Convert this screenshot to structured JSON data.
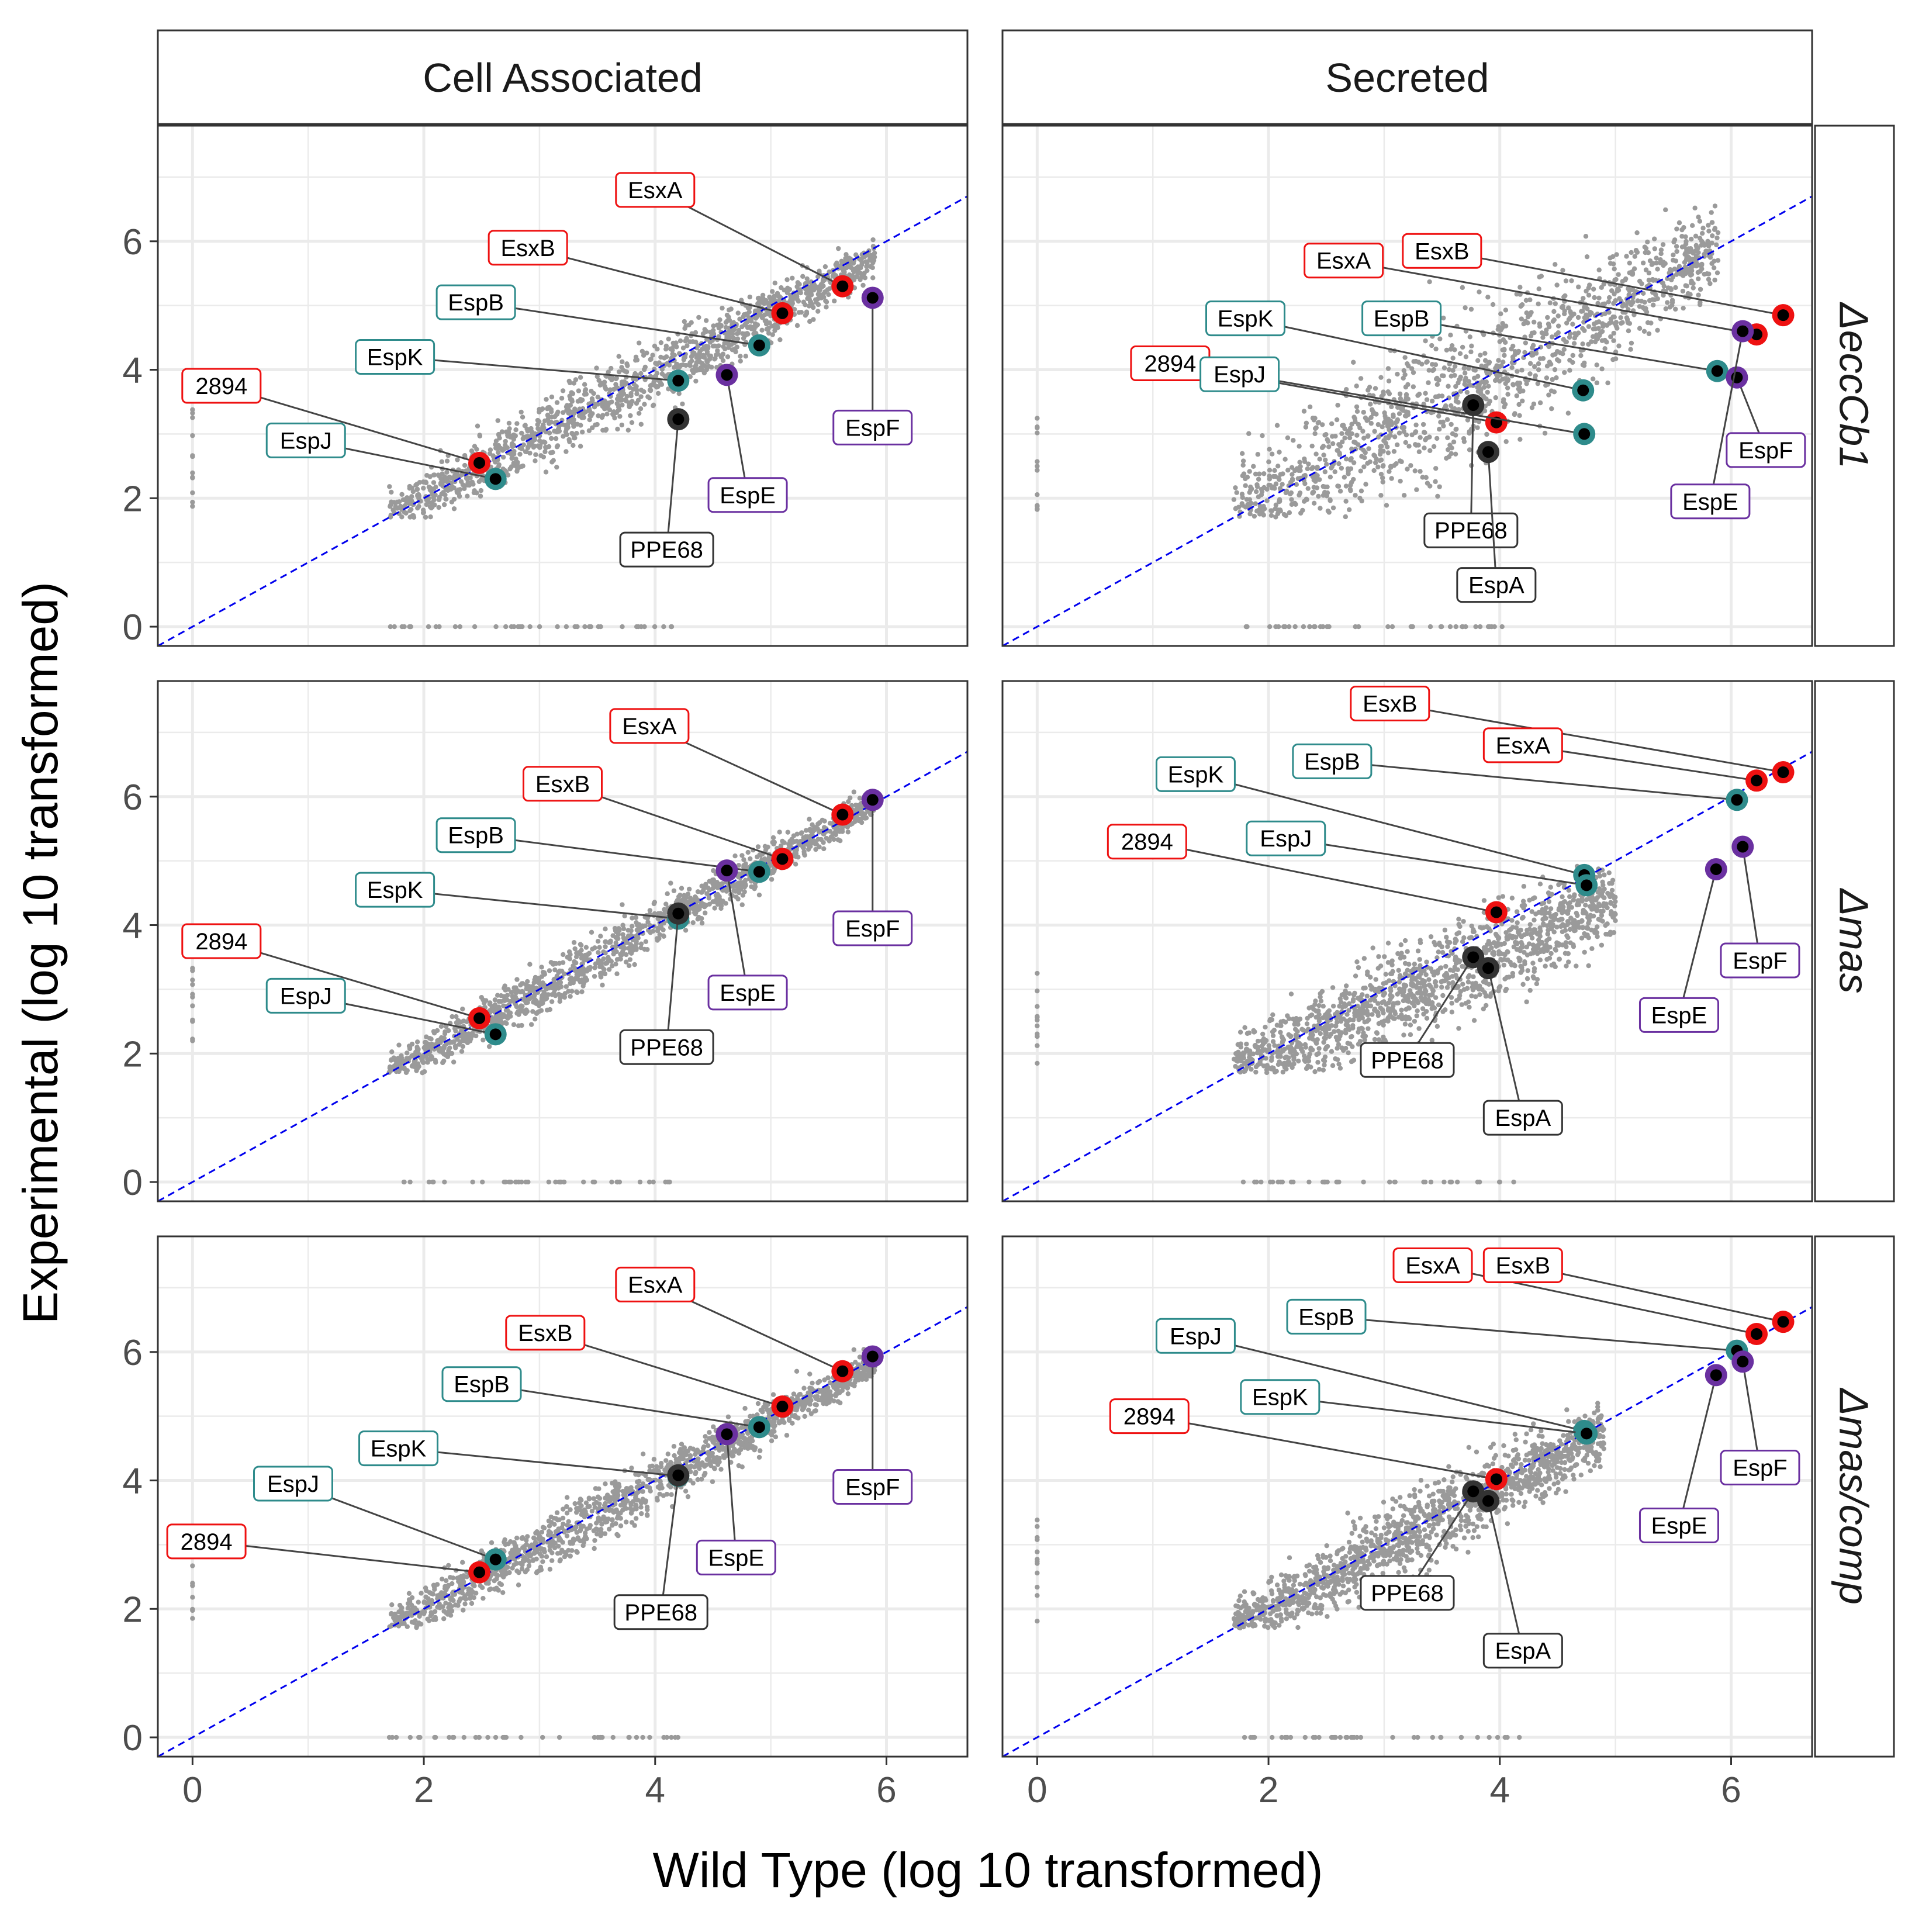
{
  "figure": {
    "ylabel": "Experimental (log 10 transformed)",
    "xlabel": "Wild Type (log 10 transformed)"
  },
  "colors": {
    "background_points": "#9a9a9a",
    "identity_line": "#0000ee",
    "group_esx": "#ee1111",
    "group_esp_teal": "#2e8b8b",
    "group_espEF": "#6a30a0",
    "group_ppe": "#333333"
  },
  "chart_data": {
    "type": "scatter",
    "columns": [
      "Cell Associated",
      "Secreted"
    ],
    "rows": [
      "ΔeccCb1",
      "Δmas",
      "Δmas/comp"
    ],
    "x_ticks": [
      0,
      2,
      4,
      6
    ],
    "y_ticks": [
      0,
      2,
      4,
      6
    ],
    "xlim": [
      -0.3,
      6.7
    ],
    "ylim": [
      -0.3,
      7.8
    ],
    "reference_line": "y = x",
    "grid": true,
    "panels": [
      {
        "row": "ΔeccCb1",
        "column": "Cell Associated",
        "cloud": {
          "x_range": [
            1.7,
            5.9
          ],
          "center_slope": 0.96,
          "spread": 0.25
        },
        "points": [
          {
            "label": "EsxA",
            "x": 5.62,
            "y": 5.3,
            "group": "esx",
            "lx": 4.0,
            "ly": 6.8
          },
          {
            "label": "EsxB",
            "x": 5.1,
            "y": 4.88,
            "group": "esx",
            "lx": 2.9,
            "ly": 5.9
          },
          {
            "label": "EspB",
            "x": 4.9,
            "y": 4.38,
            "group": "teal",
            "lx": 2.45,
            "ly": 5.05
          },
          {
            "label": "EspK",
            "x": 4.2,
            "y": 3.83,
            "group": "teal",
            "lx": 1.75,
            "ly": 4.2
          },
          {
            "label": "2894",
            "x": 2.48,
            "y": 2.55,
            "group": "esx",
            "lx": 0.25,
            "ly": 3.75
          },
          {
            "label": "EspJ",
            "x": 2.62,
            "y": 2.3,
            "group": "teal",
            "lx": 0.98,
            "ly": 2.9
          },
          {
            "label": "EspF",
            "x": 5.88,
            "y": 5.12,
            "group": "purple",
            "lx": 5.88,
            "ly": 3.1
          },
          {
            "label": "EspE",
            "x": 4.62,
            "y": 3.92,
            "group": "purple",
            "lx": 4.8,
            "ly": 2.05
          },
          {
            "label": "PPE68",
            "x": 4.2,
            "y": 3.23,
            "group": "ppe",
            "lx": 4.1,
            "ly": 1.2
          }
        ]
      },
      {
        "row": "ΔeccCb1",
        "column": "Secreted",
        "cloud": {
          "x_range": [
            1.7,
            5.9
          ],
          "center_slope": 1.0,
          "spread": 0.55
        },
        "points": [
          {
            "label": "EsxA",
            "x": 6.22,
            "y": 4.55,
            "group": "esx",
            "lx": 2.65,
            "ly": 5.7
          },
          {
            "label": "EsxB",
            "x": 6.45,
            "y": 4.85,
            "group": "esx",
            "lx": 3.5,
            "ly": 5.85
          },
          {
            "label": "EspK",
            "x": 4.72,
            "y": 3.68,
            "group": "teal",
            "lx": 1.8,
            "ly": 4.8
          },
          {
            "label": "EspB",
            "x": 5.88,
            "y": 3.98,
            "group": "teal",
            "lx": 3.15,
            "ly": 4.8
          },
          {
            "label": "2894",
            "x": 3.97,
            "y": 3.18,
            "group": "esx",
            "lx": 1.15,
            "ly": 4.1
          },
          {
            "label": "EspJ",
            "x": 4.73,
            "y": 3.0,
            "group": "teal",
            "lx": 1.75,
            "ly": 3.93
          },
          {
            "label": "EspF",
            "x": 6.05,
            "y": 3.88,
            "group": "purple",
            "lx": 6.3,
            "ly": 2.75
          },
          {
            "label": "EspE",
            "x": 6.1,
            "y": 4.6,
            "group": "purple",
            "lx": 5.82,
            "ly": 1.95
          },
          {
            "label": "PPE68",
            "x": 3.77,
            "y": 3.45,
            "group": "ppe",
            "lx": 3.75,
            "ly": 1.5
          },
          {
            "label": "EspA",
            "x": 3.9,
            "y": 2.72,
            "group": "ppe",
            "lx": 3.97,
            "ly": 0.65
          }
        ]
      },
      {
        "row": "Δmas",
        "column": "Cell Associated",
        "cloud": {
          "x_range": [
            1.7,
            5.9
          ],
          "center_slope": 1.0,
          "spread": 0.18
        },
        "points": [
          {
            "label": "EsxA",
            "x": 5.62,
            "y": 5.72,
            "group": "esx",
            "lx": 3.95,
            "ly": 7.1
          },
          {
            "label": "EsxB",
            "x": 5.1,
            "y": 5.03,
            "group": "esx",
            "lx": 3.2,
            "ly": 6.2
          },
          {
            "label": "EspB",
            "x": 4.9,
            "y": 4.83,
            "group": "teal",
            "lx": 2.45,
            "ly": 5.4
          },
          {
            "label": "EspK",
            "x": 4.2,
            "y": 4.1,
            "group": "teal",
            "lx": 1.75,
            "ly": 4.55
          },
          {
            "label": "2894",
            "x": 2.48,
            "y": 2.55,
            "group": "esx",
            "lx": 0.25,
            "ly": 3.75
          },
          {
            "label": "EspJ",
            "x": 2.62,
            "y": 2.3,
            "group": "teal",
            "lx": 0.98,
            "ly": 2.9
          },
          {
            "label": "EspF",
            "x": 5.88,
            "y": 5.95,
            "group": "purple",
            "lx": 5.88,
            "ly": 3.95
          },
          {
            "label": "EspE",
            "x": 4.62,
            "y": 4.85,
            "group": "purple",
            "lx": 4.8,
            "ly": 2.95
          },
          {
            "label": "PPE68",
            "x": 4.2,
            "y": 4.18,
            "group": "ppe",
            "lx": 4.1,
            "ly": 2.1
          }
        ]
      },
      {
        "row": "Δmas",
        "column": "Secreted",
        "cloud": {
          "x_range": [
            1.7,
            5.0
          ],
          "center_slope": 0.8,
          "spread": 0.35
        },
        "points": [
          {
            "label": "EsxB",
            "x": 6.45,
            "y": 6.38,
            "group": "esx",
            "lx": 3.05,
            "ly": 7.45
          },
          {
            "label": "EsxA",
            "x": 6.22,
            "y": 6.25,
            "group": "esx",
            "lx": 4.2,
            "ly": 6.8
          },
          {
            "label": "EspB",
            "x": 6.05,
            "y": 5.95,
            "group": "teal",
            "lx": 2.55,
            "ly": 6.55
          },
          {
            "label": "EspK",
            "x": 4.73,
            "y": 4.78,
            "group": "teal",
            "lx": 1.37,
            "ly": 6.35
          },
          {
            "label": "EspJ",
            "x": 4.75,
            "y": 4.62,
            "group": "teal",
            "lx": 2.15,
            "ly": 5.35
          },
          {
            "label": "2894",
            "x": 3.97,
            "y": 4.2,
            "group": "esx",
            "lx": 0.95,
            "ly": 5.3
          },
          {
            "label": "EspE",
            "x": 5.87,
            "y": 4.87,
            "group": "purple",
            "lx": 5.55,
            "ly": 2.6
          },
          {
            "label": "EspF",
            "x": 6.1,
            "y": 5.22,
            "group": "purple",
            "lx": 6.25,
            "ly": 3.45
          },
          {
            "label": "PPE68",
            "x": 3.77,
            "y": 3.5,
            "group": "ppe",
            "lx": 3.2,
            "ly": 1.9
          },
          {
            "label": "EspA",
            "x": 3.9,
            "y": 3.33,
            "group": "ppe",
            "lx": 4.2,
            "ly": 1.0
          }
        ]
      },
      {
        "row": "Δmas/comp",
        "column": "Cell Associated",
        "cloud": {
          "x_range": [
            1.7,
            5.9
          ],
          "center_slope": 0.98,
          "spread": 0.2
        },
        "points": [
          {
            "label": "EsxA",
            "x": 5.62,
            "y": 5.7,
            "group": "esx",
            "lx": 4.0,
            "ly": 7.05
          },
          {
            "label": "EsxB",
            "x": 5.1,
            "y": 5.15,
            "group": "esx",
            "lx": 3.05,
            "ly": 6.3
          },
          {
            "label": "EspB",
            "x": 4.9,
            "y": 4.83,
            "group": "teal",
            "lx": 2.5,
            "ly": 5.5
          },
          {
            "label": "EspK",
            "x": 4.2,
            "y": 4.07,
            "group": "teal",
            "lx": 1.78,
            "ly": 4.5
          },
          {
            "label": "EspJ",
            "x": 2.62,
            "y": 2.77,
            "group": "teal",
            "lx": 0.87,
            "ly": 3.95
          },
          {
            "label": "2894",
            "x": 2.48,
            "y": 2.57,
            "group": "esx",
            "lx": 0.12,
            "ly": 3.05
          },
          {
            "label": "EspF",
            "x": 5.88,
            "y": 5.93,
            "group": "purple",
            "lx": 5.88,
            "ly": 3.9
          },
          {
            "label": "EspE",
            "x": 4.62,
            "y": 4.72,
            "group": "purple",
            "lx": 4.7,
            "ly": 2.8
          },
          {
            "label": "PPE68",
            "x": 4.2,
            "y": 4.08,
            "group": "ppe",
            "lx": 4.05,
            "ly": 1.95
          }
        ]
      },
      {
        "row": "Δmas/comp",
        "column": "Secreted",
        "cloud": {
          "x_range": [
            1.7,
            4.9
          ],
          "center_slope": 0.95,
          "spread": 0.28
        },
        "points": [
          {
            "label": "EsxA",
            "x": 6.22,
            "y": 6.28,
            "group": "esx",
            "lx": 3.42,
            "ly": 7.35
          },
          {
            "label": "EsxB",
            "x": 6.45,
            "y": 6.47,
            "group": "esx",
            "lx": 4.2,
            "ly": 7.35
          },
          {
            "label": "EspB",
            "x": 6.05,
            "y": 6.02,
            "group": "teal",
            "lx": 2.5,
            "ly": 6.55
          },
          {
            "label": "EspJ",
            "x": 4.73,
            "y": 4.77,
            "group": "teal",
            "lx": 1.37,
            "ly": 6.25
          },
          {
            "label": "EspK",
            "x": 4.75,
            "y": 4.73,
            "group": "teal",
            "lx": 2.1,
            "ly": 5.3
          },
          {
            "label": "2894",
            "x": 3.97,
            "y": 4.02,
            "group": "esx",
            "lx": 0.97,
            "ly": 5.0
          },
          {
            "label": "EspE",
            "x": 5.87,
            "y": 5.64,
            "group": "purple",
            "lx": 5.55,
            "ly": 3.3
          },
          {
            "label": "EspF",
            "x": 6.1,
            "y": 5.85,
            "group": "purple",
            "lx": 6.25,
            "ly": 4.2
          },
          {
            "label": "PPE68",
            "x": 3.77,
            "y": 3.83,
            "group": "ppe",
            "lx": 3.2,
            "ly": 2.25
          },
          {
            "label": "EspA",
            "x": 3.9,
            "y": 3.68,
            "group": "ppe",
            "lx": 4.2,
            "ly": 1.35
          }
        ]
      }
    ]
  }
}
